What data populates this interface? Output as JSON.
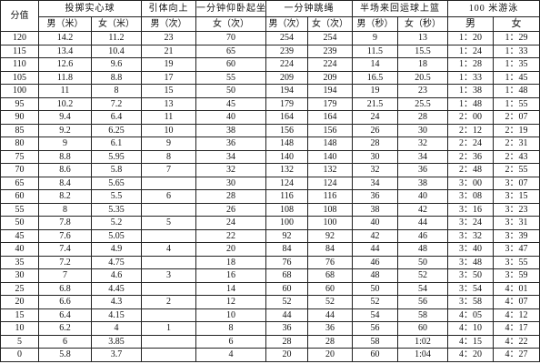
{
  "table": {
    "header": {
      "score": "分值",
      "throw": {
        "title": "投掷实心球",
        "male": "男（米）",
        "female": "女（米）"
      },
      "pullup": {
        "title": "引体向上",
        "male": "男（次）"
      },
      "situp": {
        "title": "一分钟仰卧起坐",
        "female": "女（次）"
      },
      "rope": {
        "title": "一分钟跳绳",
        "male": "男（次）",
        "female": "女（次）"
      },
      "court": {
        "title": "半场来回运球上篮",
        "male": "男（秒）",
        "female": "女（秒）"
      },
      "swim": {
        "title": "100 米游泳",
        "male": "男",
        "female": "女"
      }
    },
    "rows": [
      [
        "120",
        "14.2",
        "11.2",
        "23",
        "70",
        "254",
        "254",
        "9",
        "13",
        "1：20",
        "1：29"
      ],
      [
        "115",
        "13.4",
        "10.4",
        "21",
        "65",
        "239",
        "239",
        "11.5",
        "15.5",
        "1：24",
        "1：33"
      ],
      [
        "110",
        "12.6",
        "9.6",
        "19",
        "60",
        "224",
        "224",
        "14",
        "18",
        "1：28",
        "1：35"
      ],
      [
        "105",
        "11.8",
        "8.8",
        "17",
        "55",
        "209",
        "209",
        "16.5",
        "20.5",
        "1：33",
        "1：45"
      ],
      [
        "100",
        "11",
        "8",
        "15",
        "50",
        "194",
        "194",
        "19",
        "23",
        "1：38",
        "1：48"
      ],
      [
        "95",
        "10.2",
        "7.2",
        "13",
        "45",
        "179",
        "179",
        "21.5",
        "25.5",
        "1：48",
        "1：55"
      ],
      [
        "90",
        "9.4",
        "6.4",
        "11",
        "40",
        "164",
        "164",
        "24",
        "28",
        "2：00",
        "2：07"
      ],
      [
        "85",
        "9.2",
        "6.25",
        "10",
        "38",
        "156",
        "156",
        "26",
        "30",
        "2：12",
        "2：19"
      ],
      [
        "80",
        "9",
        "6.1",
        "9",
        "36",
        "148",
        "148",
        "28",
        "32",
        "2：24",
        "2：31"
      ],
      [
        "75",
        "8.8",
        "5.95",
        "8",
        "34",
        "140",
        "140",
        "30",
        "34",
        "2：36",
        "2：43"
      ],
      [
        "70",
        "8.6",
        "5.8",
        "7",
        "32",
        "132",
        "132",
        "32",
        "36",
        "2：48",
        "2：55"
      ],
      [
        "65",
        "8.4",
        "5.65",
        "",
        "30",
        "124",
        "124",
        "34",
        "38",
        "3：00",
        "3：07"
      ],
      [
        "60",
        "8.2",
        "5.5",
        "6",
        "28",
        "116",
        "116",
        "36",
        "40",
        "3：08",
        "3：15"
      ],
      [
        "55",
        "8",
        "5.35",
        "",
        "26",
        "108",
        "108",
        "38",
        "42",
        "3：16",
        "3：23"
      ],
      [
        "50",
        "7.8",
        "5.2",
        "5",
        "24",
        "100",
        "100",
        "40",
        "44",
        "3：24",
        "3：31"
      ],
      [
        "45",
        "7.6",
        "5.05",
        "",
        "22",
        "92",
        "92",
        "42",
        "46",
        "3：32",
        "3：39"
      ],
      [
        "40",
        "7.4",
        "4.9",
        "4",
        "20",
        "84",
        "84",
        "44",
        "48",
        "3：40",
        "3：47"
      ],
      [
        "35",
        "7.2",
        "4.75",
        "",
        "18",
        "76",
        "76",
        "46",
        "50",
        "3：48",
        "3：55"
      ],
      [
        "30",
        "7",
        "4.6",
        "3",
        "16",
        "68",
        "68",
        "48",
        "52",
        "3：50",
        "3：59"
      ],
      [
        "25",
        "6.8",
        "4.45",
        "",
        "14",
        "60",
        "60",
        "50",
        "54",
        "3：54",
        "4：01"
      ],
      [
        "20",
        "6.6",
        "4.3",
        "2",
        "12",
        "52",
        "52",
        "52",
        "56",
        "3：58",
        "4：07"
      ],
      [
        "15",
        "6.4",
        "4.15",
        "",
        "10",
        "44",
        "44",
        "54",
        "58",
        "4：05",
        "4：12"
      ],
      [
        "10",
        "6.2",
        "4",
        "1",
        "8",
        "36",
        "36",
        "56",
        "60",
        "4：10",
        "4：17"
      ],
      [
        "5",
        "6",
        "3.85",
        "",
        "6",
        "28",
        "28",
        "58",
        "1:02",
        "4：15",
        "4：22"
      ],
      [
        "0",
        "5.8",
        "3.7",
        "",
        "4",
        "20",
        "20",
        "60",
        "1:04",
        "4：20",
        "4：27"
      ]
    ]
  }
}
